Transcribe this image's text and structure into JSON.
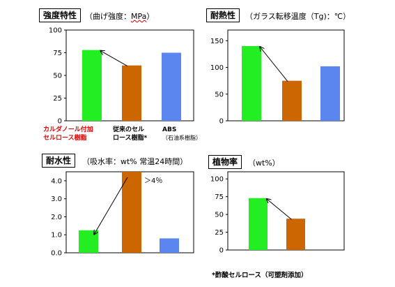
{
  "colors": {
    "green": "#22ee22",
    "orange": "#cc6600",
    "blue": "#5b86f0",
    "red_text": "#e00000"
  },
  "chart_data": [
    {
      "type": "bar",
      "title": "強度特性",
      "subtitle": "（曲げ強度：",
      "subtitle_unit": "MPa",
      "subtitle_close": "）",
      "categories": [
        "カルダノール付加セルロース樹脂",
        "従来のセルロース樹脂*",
        "ABS（石油系樹脂）"
      ],
      "values": [
        78,
        61,
        75
      ],
      "yticks": [
        0,
        25,
        50,
        75,
        100
      ],
      "ylim": [
        0,
        100
      ],
      "arrow": {
        "from": 1,
        "to": 0
      }
    },
    {
      "type": "bar",
      "title": "耐熱性",
      "subtitle": "（ガラス転移温度（Tg)：℃）",
      "categories": [
        "カルダノール付加セルロース樹脂",
        "従来のセルロース樹脂*",
        "ABS（石油系樹脂）"
      ],
      "values": [
        140,
        75,
        102
      ],
      "yticks": [
        0,
        50,
        100,
        150
      ],
      "ylim": [
        0,
        170
      ],
      "arrow": {
        "from": 1,
        "to": 0
      }
    },
    {
      "type": "bar",
      "title": "耐水性",
      "subtitle": "（吸水率：wt% 常温24時間）",
      "categories": [
        "カルダノール付加セルロース樹脂",
        "従来のセルロース樹脂*",
        "ABS（石油系樹脂）"
      ],
      "values": [
        1.25,
        4.5,
        0.8
      ],
      "yticks": [
        0.0,
        1.0,
        2.0,
        3.0,
        4.0
      ],
      "ytick_labels": [
        "0.0",
        "1.0",
        "2.0",
        "3.0",
        "4.0"
      ],
      "ylim": [
        0,
        4.5
      ],
      "annotation": "＞4％",
      "arrow": {
        "from": 1,
        "to": 0
      }
    },
    {
      "type": "bar",
      "title": "植物率",
      "subtitle": "（wt%）",
      "categories": [
        "カルダノール付加セルロース樹脂",
        "従来のセルロース樹脂*"
      ],
      "values": [
        73,
        44
      ],
      "yticks": [
        0,
        25,
        50,
        75,
        100
      ],
      "ylim": [
        0,
        110
      ],
      "arrow": {
        "from": 1,
        "to": 0
      }
    }
  ],
  "category_labels": {
    "cardanol_line1": "カルダノール付加",
    "cardanol_line2": "セルロース樹脂",
    "conventional_line1": "従来のセル",
    "conventional_line2": "ロース樹脂*",
    "abs_line1": "ABS",
    "abs_line2": "（石油系樹脂）"
  },
  "footnote": "*酢酸セルロース（可塑剤添加）"
}
